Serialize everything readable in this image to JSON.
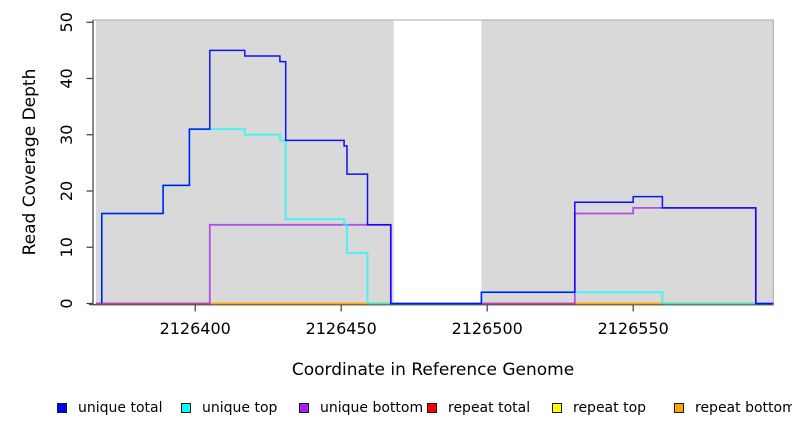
{
  "chart_data": {
    "type": "line",
    "step": true,
    "title": "",
    "xlabel": "Coordinate in Reference Genome",
    "ylabel": "Read Coverage Depth",
    "xlim": [
      2126365,
      2126598
    ],
    "ylim": [
      0,
      50
    ],
    "x_ticks": [
      2126400,
      2126450,
      2126500,
      2126550
    ],
    "y_ticks": [
      0,
      10,
      20,
      30,
      40,
      50
    ],
    "grid": false,
    "legend_position": "bottom",
    "background": {
      "plot_fill": "#ffffff",
      "region_fill": "#d9d9d9",
      "regions": [
        [
          2126366,
          2126468
        ],
        [
          2126498,
          2126598
        ]
      ]
    },
    "series": [
      {
        "name": "repeat total",
        "color": "#ff0000",
        "points": [
          [
            2126366,
            0
          ],
          [
            2126598,
            0
          ]
        ]
      },
      {
        "name": "repeat top",
        "color": "#ffff00",
        "points": [
          [
            2126366,
            0
          ],
          [
            2126598,
            0
          ]
        ]
      },
      {
        "name": "repeat bottom",
        "color": "#ffa500",
        "points": [
          [
            2126366,
            0
          ],
          [
            2126598,
            0
          ]
        ]
      },
      {
        "name": "unique bottom",
        "color": "#a020f0",
        "points": [
          [
            2126366,
            0
          ],
          [
            2126405,
            14
          ],
          [
            2126467,
            0
          ],
          [
            2126530,
            16
          ],
          [
            2126550,
            17
          ],
          [
            2126592,
            0
          ],
          [
            2126598,
            0
          ]
        ]
      },
      {
        "name": "unique top",
        "color": "#00ffff",
        "points": [
          [
            2126368,
            0
          ],
          [
            2126368,
            16
          ],
          [
            2126389,
            21
          ],
          [
            2126398,
            31
          ],
          [
            2126417,
            30
          ],
          [
            2126429,
            29
          ],
          [
            2126431,
            15
          ],
          [
            2126451,
            14
          ],
          [
            2126452,
            9
          ],
          [
            2126459,
            0
          ],
          [
            2126498,
            2
          ],
          [
            2126560,
            0
          ],
          [
            2126598,
            0
          ]
        ]
      },
      {
        "name": "unique total",
        "color": "#0000ff",
        "points": [
          [
            2126368,
            0
          ],
          [
            2126368,
            16
          ],
          [
            2126389,
            21
          ],
          [
            2126398,
            31
          ],
          [
            2126405,
            45
          ],
          [
            2126417,
            44
          ],
          [
            2126429,
            43
          ],
          [
            2126431,
            29
          ],
          [
            2126451,
            28
          ],
          [
            2126452,
            23
          ],
          [
            2126459,
            14
          ],
          [
            2126467,
            0
          ],
          [
            2126498,
            2
          ],
          [
            2126530,
            18
          ],
          [
            2126550,
            19
          ],
          [
            2126560,
            17
          ],
          [
            2126592,
            0
          ],
          [
            2126598,
            0
          ]
        ]
      }
    ],
    "legend": [
      {
        "label": "unique total",
        "color": "#0000ff"
      },
      {
        "label": "unique top",
        "color": "#00ffff"
      },
      {
        "label": "unique bottom",
        "color": "#a020f0"
      },
      {
        "label": "repeat total",
        "color": "#ff0000"
      },
      {
        "label": "repeat top",
        "color": "#ffff00"
      },
      {
        "label": "repeat bottom",
        "color": "#ffa500"
      }
    ]
  }
}
